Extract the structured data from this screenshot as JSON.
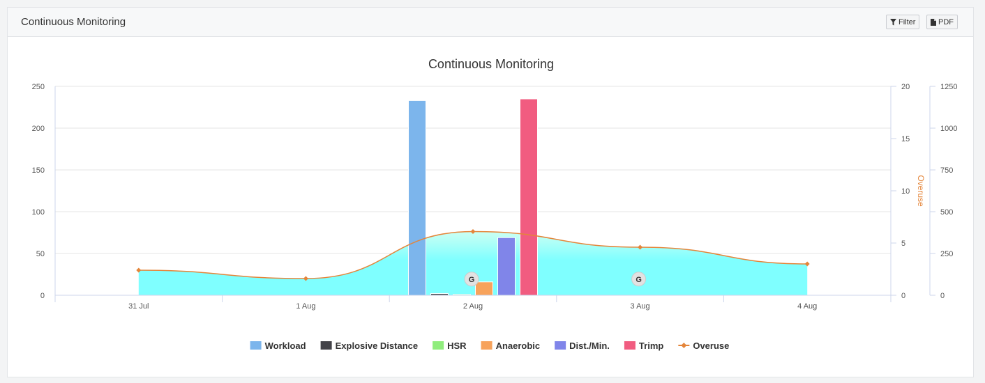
{
  "panel": {
    "title": "Continuous Monitoring",
    "filter_label": "Filter",
    "pdf_label": "PDF",
    "filter_icon": "filter-icon",
    "pdf_icon": "file-icon"
  },
  "chart_data": {
    "type": "bar",
    "title": "Continuous Monitoring",
    "categories": [
      "31 Jul",
      "1 Aug",
      "2 Aug",
      "3 Aug",
      "4 Aug"
    ],
    "axes": {
      "left": {
        "min": 0,
        "max": 250,
        "ticks": [
          0,
          50,
          100,
          150,
          200,
          250
        ]
      },
      "overuse": {
        "label": "Overuse",
        "min": 0,
        "max": 20,
        "ticks": [
          0,
          5,
          10,
          15,
          20
        ]
      },
      "right": {
        "min": 0,
        "max": 1250,
        "ticks": [
          0,
          250,
          500,
          750,
          1000,
          1250
        ]
      }
    },
    "series": [
      {
        "name": "Workload",
        "type": "bar",
        "color": "#7cb5ec",
        "values": [
          null,
          null,
          233,
          null,
          null
        ]
      },
      {
        "name": "Explosive Distance",
        "type": "bar",
        "color": "#434348",
        "values": [
          null,
          null,
          2,
          null,
          null
        ]
      },
      {
        "name": "HSR",
        "type": "bar",
        "color": "#90ed7d",
        "values": [
          null,
          null,
          1,
          null,
          null
        ]
      },
      {
        "name": "Anaerobic",
        "type": "bar",
        "color": "#f7a35c",
        "values": [
          null,
          null,
          16,
          null,
          null
        ]
      },
      {
        "name": "Dist./Min.",
        "type": "bar",
        "color": "#8085e9",
        "values": [
          null,
          null,
          69,
          null,
          null
        ]
      },
      {
        "name": "Trimp",
        "type": "bar",
        "color": "#f15c80",
        "values": [
          null,
          null,
          235,
          null,
          null
        ]
      },
      {
        "name": "Overuse",
        "type": "areaspline",
        "color": "#e4853a",
        "fill": "#7fffff",
        "values": [
          2.4,
          1.6,
          6.1,
          4.6,
          3.0
        ]
      }
    ],
    "markers": [
      {
        "label": "G",
        "category": "2 Aug",
        "value": 16
      },
      {
        "label": "G",
        "category": "3 Aug",
        "value": 16
      }
    ],
    "legend": {
      "position": "bottom-center"
    },
    "grid": true
  }
}
